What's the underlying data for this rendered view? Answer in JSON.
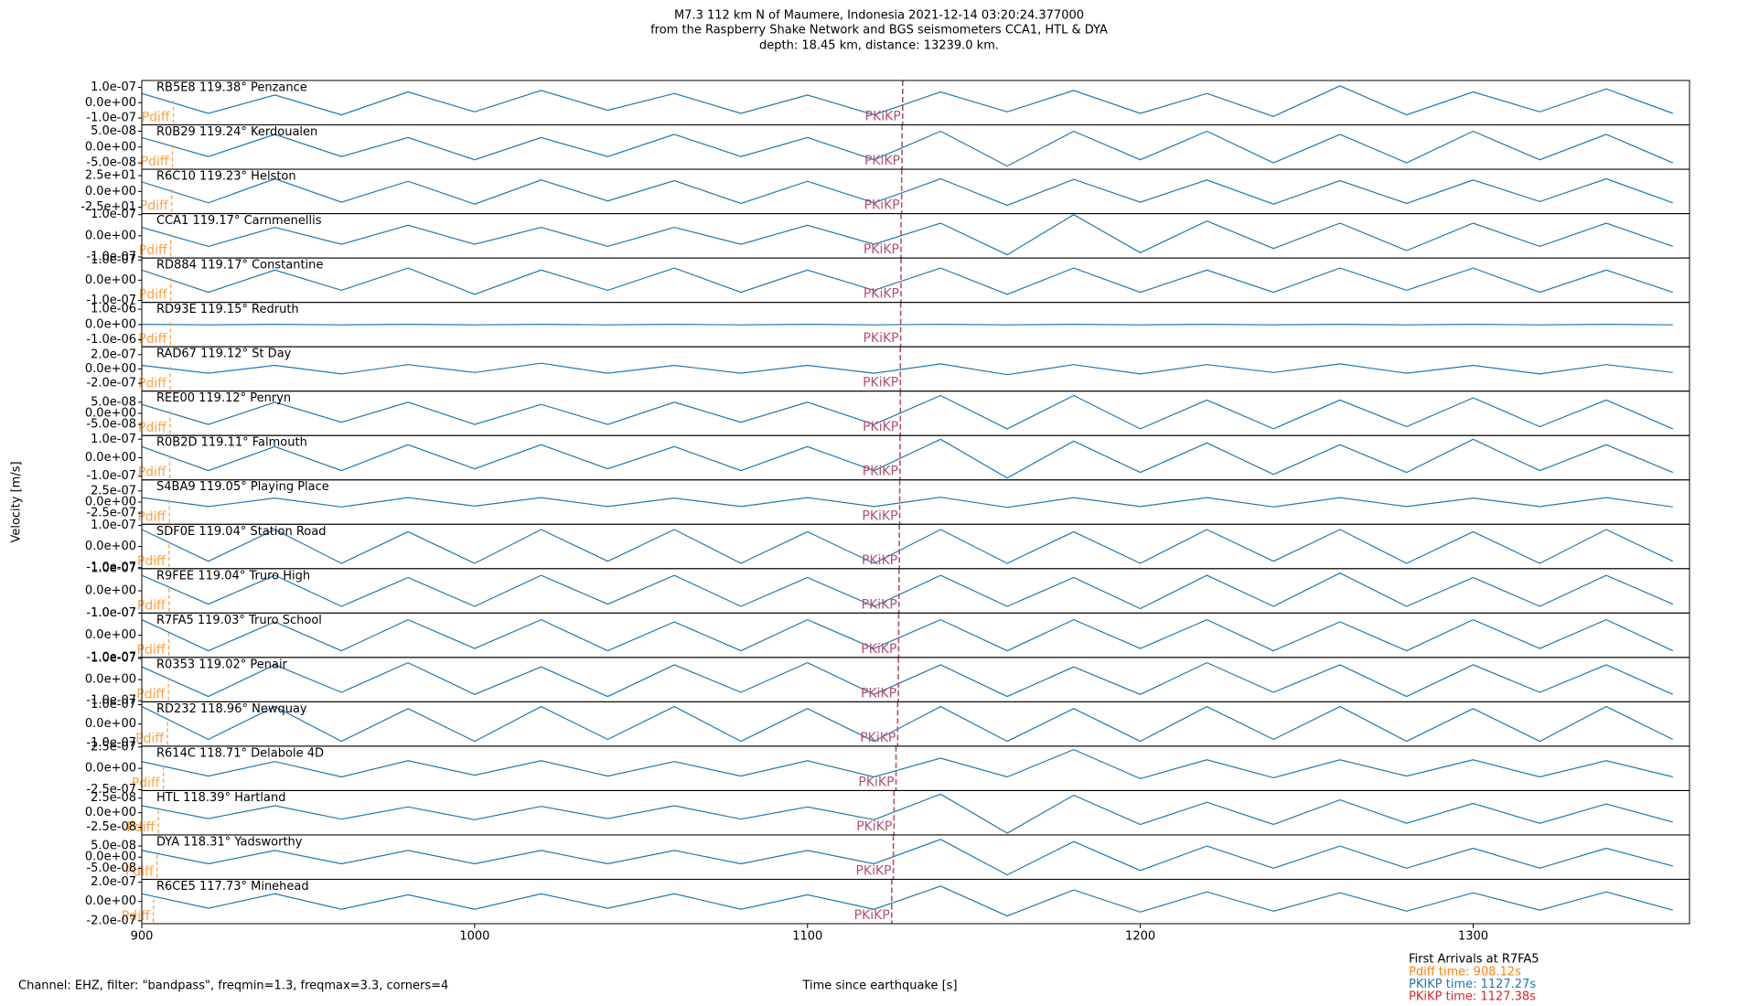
{
  "chart_data": {
    "type": "line",
    "title": [
      "M7.3 112 km N of Maumere, Indonesia 2021-12-14 03:20:24.377000",
      "from the Raspberry Shake Network and BGS seismometers CCA1, HTL & DYA",
      "depth: 18.45 km, distance: 13239.0 km."
    ],
    "ylabel": "Velocity [m/s]",
    "xlabel": "Time since earthquake [s]",
    "note": "Channel: EHZ, filter: \"bandpass\", freqmin=1.3, freqmax=3.3, corners=4",
    "arrivals_title": "First Arrivals at R7FA5",
    "arrivals": [
      {
        "text": "Pdiff time: 908.12s",
        "color": "#ff7f0e"
      },
      {
        "text": "PKIKP time: 1127.27s",
        "color": "#1f77b4"
      },
      {
        "text": "PKiKP time: 1127.38s",
        "color": "#d62728"
      }
    ],
    "pdiff_label": "Pdiff",
    "pdiff_color": "#ffa040",
    "pkikp_label": "PKiKP",
    "pkikp_color": "#b4506e",
    "wave_color": "#1f77b4",
    "xlim": [
      900,
      1365
    ],
    "xticks": [
      900,
      1000,
      1100,
      1200,
      1300
    ],
    "x": [
      900,
      920,
      940,
      960,
      980,
      1000,
      1020,
      1040,
      1060,
      1080,
      1100,
      1120,
      1140,
      1160,
      1180,
      1200,
      1220,
      1240,
      1260,
      1280,
      1300,
      1320,
      1340,
      1360
    ],
    "panels": [
      {
        "label": "RB5E8 119.38° Penzance",
        "ylim": [
          -1.45e-07,
          1.45e-07
        ],
        "yticks": [
          {
            "value": 1e-07,
            "label": "1.0e-07"
          },
          {
            "value": 0,
            "label": "0.0e+00"
          },
          {
            "value": -1e-07,
            "label": "-1.0e-07"
          }
        ],
        "pdiff": 909.5,
        "pkikp": 1128.6,
        "values": [
          6e-08,
          -7e-08,
          5e-08,
          -8e-08,
          7e-08,
          -6e-08,
          8e-08,
          -5e-08,
          6e-08,
          -7e-08,
          5e-08,
          -8e-08,
          7e-08,
          -6e-08,
          8e-08,
          -7e-08,
          6e-08,
          -9e-08,
          1.1e-07,
          -8e-08,
          7e-08,
          -6e-08,
          9e-08,
          -7e-08
        ]
      },
      {
        "label": "R0B29 119.24° Kerdoualen",
        "ylim": [
          -7e-08,
          7e-08
        ],
        "yticks": [
          {
            "value": 5e-08,
            "label": "5.0e-08"
          },
          {
            "value": 0,
            "label": "0.0e+00"
          },
          {
            "value": -5e-08,
            "label": "-5.0e-08"
          }
        ],
        "pdiff": 909.2,
        "pkikp": 1128.4,
        "values": [
          3e-08,
          -3e-08,
          4e-08,
          -3e-08,
          3e-08,
          -4e-08,
          3e-08,
          -3e-08,
          4e-08,
          -3e-08,
          3e-08,
          -4e-08,
          5e-08,
          -6e-08,
          5e-08,
          -4e-08,
          5e-08,
          -5e-08,
          4e-08,
          -5e-08,
          5e-08,
          -4e-08,
          4e-08,
          -5e-08
        ]
      },
      {
        "label": "R6C10 119.23° Helston",
        "ylim": [
          -35,
          35
        ],
        "yticks": [
          {
            "value": 25,
            "label": "2.5e+01"
          },
          {
            "value": 0,
            "label": "0.0e+00"
          },
          {
            "value": -25,
            "label": "-2.5e+01"
          }
        ],
        "pdiff": 909.0,
        "pkikp": 1128.3,
        "values": [
          15,
          -18,
          20,
          -17,
          16,
          -20,
          18,
          -15,
          17,
          -19,
          16,
          -18,
          20,
          -22,
          19,
          -17,
          18,
          -20,
          17,
          -19,
          18,
          -16,
          20,
          -18
        ]
      },
      {
        "label": "CCA1 119.17° Carnmenellis",
        "ylim": [
          -1.05e-07,
          1.05e-07
        ],
        "yticks": [
          {
            "value": 1e-07,
            "label": "1.0e-07"
          },
          {
            "value": 0,
            "label": "0.0e+00"
          },
          {
            "value": -1e-07,
            "label": "-1.0e-07"
          }
        ],
        "pdiff": 908.7,
        "pkikp": 1128.1,
        "values": [
          4e-08,
          -5e-08,
          4e-08,
          -4e-08,
          5e-08,
          -4e-08,
          4e-08,
          -5e-08,
          4e-08,
          -4e-08,
          5e-08,
          -4e-08,
          6e-08,
          -9e-08,
          1e-07,
          -8e-08,
          7e-08,
          -6e-08,
          6e-08,
          -7e-08,
          6e-08,
          -5e-08,
          6e-08,
          -5e-08
        ]
      },
      {
        "label": "RD884 119.17° Constantine",
        "ylim": [
          -1.1e-07,
          1.1e-07
        ],
        "yticks": [
          {
            "value": 1e-07,
            "label": "1.0e-07"
          },
          {
            "value": 0,
            "label": "0.0e+00"
          },
          {
            "value": -1e-07,
            "label": "-1.0e-07"
          }
        ],
        "pdiff": 908.7,
        "pkikp": 1128.1,
        "values": [
          5e-08,
          -6e-08,
          5e-08,
          -5e-08,
          6e-08,
          -7e-08,
          5e-08,
          -5e-08,
          6e-08,
          -6e-08,
          5e-08,
          -5e-08,
          6e-08,
          -7e-08,
          6e-08,
          -6e-08,
          5e-08,
          -6e-08,
          6e-08,
          -5e-08,
          6e-08,
          -6e-08,
          5e-08,
          -6e-08
        ]
      },
      {
        "label": "RD93E 119.15° Redruth",
        "ylim": [
          -1.45e-06,
          1.45e-06
        ],
        "yticks": [
          {
            "value": 1e-06,
            "label": "1.0e-06"
          },
          {
            "value": 0,
            "label": "0.0e+00"
          },
          {
            "value": -1e-06,
            "label": "-1.0e-06"
          }
        ],
        "pdiff": 908.6,
        "pkikp": 1128.0,
        "values": [
          2e-08,
          -2e-08,
          2e-08,
          -2e-08,
          2e-08,
          -2e-08,
          2e-08,
          -2e-08,
          2e-08,
          -2e-08,
          2e-08,
          -2e-08,
          2e-08,
          -2e-08,
          2e-08,
          -2e-08,
          2e-08,
          -2e-08,
          2e-08,
          -2e-08,
          2e-08,
          -2e-08,
          2e-08,
          -2e-08
        ]
      },
      {
        "label": "RAD67 119.12° St Day",
        "ylim": [
          -3.1e-07,
          3.1e-07
        ],
        "yticks": [
          {
            "value": 2e-07,
            "label": "2.0e-07"
          },
          {
            "value": 0,
            "label": "0.0e+00"
          },
          {
            "value": -2e-07,
            "label": "-2.0e-07"
          }
        ],
        "pdiff": 908.5,
        "pkikp": 1127.9,
        "values": [
          5e-08,
          -6e-08,
          5e-08,
          -7e-08,
          6e-08,
          -5e-08,
          8e-08,
          -6e-08,
          5e-08,
          -6e-08,
          5e-08,
          -6e-08,
          7e-08,
          -8e-08,
          6e-08,
          -7e-08,
          6e-08,
          -5e-08,
          7e-08,
          -6e-08,
          5e-08,
          -7e-08,
          6e-08,
          -5e-08
        ]
      },
      {
        "label": "REE00 119.12° Penryn",
        "ylim": [
          -1e-07,
          1e-07
        ],
        "yticks": [
          {
            "value": 5e-08,
            "label": "5.0e-08"
          },
          {
            "value": 0,
            "label": "0.0e+00"
          },
          {
            "value": -5e-08,
            "label": "-5.0e-08"
          }
        ],
        "pdiff": 908.5,
        "pkikp": 1127.9,
        "values": [
          4e-08,
          -5e-08,
          5e-08,
          -4e-08,
          5e-08,
          -5e-08,
          4e-08,
          -5e-08,
          5e-08,
          -4e-08,
          5e-08,
          -5e-08,
          8e-08,
          -7e-08,
          8e-08,
          -7e-08,
          6e-08,
          -7e-08,
          6e-08,
          -6e-08,
          7e-08,
          -6e-08,
          6e-08,
          -7e-08
        ]
      },
      {
        "label": "R0B2D 119.11° Falmouth",
        "ylim": [
          -1.2e-07,
          1.2e-07
        ],
        "yticks": [
          {
            "value": 1e-07,
            "label": "1.0e-07"
          },
          {
            "value": 0,
            "label": "0.0e+00"
          },
          {
            "value": -1e-07,
            "label": "-1.0e-07"
          }
        ],
        "pdiff": 908.4,
        "pkikp": 1127.8,
        "values": [
          6e-08,
          -7e-08,
          6e-08,
          -7e-08,
          7e-08,
          -6e-08,
          7e-08,
          -6e-08,
          6e-08,
          -7e-08,
          6e-08,
          -7e-08,
          1e-07,
          -1.1e-07,
          9e-08,
          -8e-08,
          8e-08,
          -9e-08,
          7e-08,
          -8e-08,
          1e-07,
          -7e-08,
          7e-08,
          -8e-08
        ]
      },
      {
        "label": "S4BA9 119.05° Playing Place",
        "ylim": [
          -5e-07,
          5e-07
        ],
        "yticks": [
          {
            "value": 2.5e-07,
            "label": "2.5e-07"
          },
          {
            "value": 0,
            "label": "0.0e+00"
          },
          {
            "value": -2.5e-07,
            "label": "-2.5e-07"
          }
        ],
        "pdiff": 908.3,
        "pkikp": 1127.7,
        "values": [
          1e-07,
          -1e-07,
          9e-08,
          -1.1e-07,
          1e-07,
          -9e-08,
          1e-07,
          -1e-07,
          9e-08,
          -1e-07,
          1e-07,
          -1e-07,
          1.1e-07,
          -1.2e-07,
          1e-07,
          -1e-07,
          1e-07,
          -1.1e-07,
          1e-07,
          -1e-07,
          9e-08,
          -1e-07,
          1e-07,
          -1.1e-07
        ]
      },
      {
        "label": "SDF0E 119.04° Station Road",
        "ylim": [
          -1.05e-07,
          1.05e-07
        ],
        "yticks": [
          {
            "value": 1e-07,
            "label": "1.0e-07"
          },
          {
            "value": 0,
            "label": "0.0e+00"
          },
          {
            "value": -1e-07,
            "label": "-1.0e-07"
          }
        ],
        "pdiff": 908.2,
        "pkikp": 1127.6,
        "values": [
          8e-08,
          -7e-08,
          8e-08,
          -8e-08,
          7e-08,
          -8e-08,
          8e-08,
          -7e-08,
          8e-08,
          -8e-08,
          7e-08,
          -8e-08,
          8e-08,
          -8e-08,
          7e-08,
          -8e-08,
          8e-08,
          -7e-08,
          8e-08,
          -8e-08,
          7e-08,
          -8e-08,
          8e-08,
          -7e-08
        ]
      },
      {
        "label": "R9FEE 119.04° Truro High",
        "ylim": [
          -1e-07,
          1e-07
        ],
        "yticks": [
          {
            "value": 1e-07,
            "label": "1.0e-07"
          },
          {
            "value": 0,
            "label": "0.0e+00"
          },
          {
            "value": -1e-07,
            "label": "-1.0e-07"
          }
        ],
        "pdiff": 908.2,
        "pkikp": 1127.5,
        "values": [
          7e-08,
          -6e-08,
          7e-08,
          -7e-08,
          6e-08,
          -7e-08,
          7e-08,
          -6e-08,
          7e-08,
          -7e-08,
          6e-08,
          -7e-08,
          7e-08,
          -7e-08,
          6e-08,
          -8e-08,
          7e-08,
          -7e-08,
          8e-08,
          -7e-08,
          6e-08,
          -7e-08,
          7e-08,
          -6e-08
        ]
      },
      {
        "label": "R7FA5 119.03° Truro School",
        "ylim": [
          -1e-07,
          1e-07
        ],
        "yticks": [
          {
            "value": 1e-07,
            "label": "1.0e-07"
          },
          {
            "value": 0,
            "label": "0.0e+00"
          },
          {
            "value": -1e-07,
            "label": "-1.0e-07"
          }
        ],
        "pdiff": 908.1,
        "pkikp": 1127.4,
        "values": [
          7e-08,
          -7e-08,
          6e-08,
          -7e-08,
          7e-08,
          -6e-08,
          7e-08,
          -7e-08,
          6e-08,
          -7e-08,
          7e-08,
          -6e-08,
          7e-08,
          -7e-08,
          7e-08,
          -6e-08,
          7e-08,
          -7e-08,
          6e-08,
          -7e-08,
          7e-08,
          -6e-08,
          7e-08,
          -7e-08
        ]
      },
      {
        "label": "R0353 119.02° Penair",
        "ylim": [
          -1.05e-07,
          1.05e-07
        ],
        "yticks": [
          {
            "value": 1e-07,
            "label": "1.0e-07"
          },
          {
            "value": 0,
            "label": "0.0e+00"
          },
          {
            "value": -1e-07,
            "label": "-1.0e-07"
          }
        ],
        "pdiff": 908.0,
        "pkikp": 1127.3,
        "values": [
          6e-08,
          -8e-08,
          7e-08,
          -6e-08,
          8e-08,
          -7e-08,
          6e-08,
          -8e-08,
          7e-08,
          -6e-08,
          8e-08,
          -7e-08,
          7e-08,
          -8e-08,
          6e-08,
          -7e-08,
          8e-08,
          -6e-08,
          7e-08,
          -8e-08,
          7e-08,
          -6e-08,
          7e-08,
          -7e-08
        ]
      },
      {
        "label": "RD232 118.96° Newquay",
        "ylim": [
          -1.15e-07,
          1.15e-07
        ],
        "yticks": [
          {
            "value": 1e-07,
            "label": "1.0e-07"
          },
          {
            "value": 0,
            "label": "0.0e+00"
          },
          {
            "value": -1e-07,
            "label": "-1.0e-07"
          }
        ],
        "pdiff": 907.7,
        "pkikp": 1127.1,
        "values": [
          9e-08,
          -8e-08,
          9e-08,
          -9e-08,
          8e-08,
          -9e-08,
          9e-08,
          -8e-08,
          9e-08,
          -9e-08,
          8e-08,
          -9e-08,
          9e-08,
          -9e-08,
          8e-08,
          -9e-08,
          9e-08,
          -8e-08,
          9e-08,
          -9e-08,
          8e-08,
          -9e-08,
          9e-08,
          -8e-08
        ]
      },
      {
        "label": "R614C 118.71° Delabole 4D",
        "ylim": [
          -2.6e-07,
          2.6e-07
        ],
        "yticks": [
          {
            "value": 2.5e-07,
            "label": "2.5e-07"
          },
          {
            "value": 0,
            "label": "0.0e+00"
          },
          {
            "value": -2.5e-07,
            "label": "-2.5e-07"
          }
        ],
        "pdiff": 906.5,
        "pkikp": 1126.6,
        "values": [
          8e-08,
          -9e-08,
          8e-08,
          -1e-07,
          9e-08,
          -8e-08,
          9e-08,
          -9e-08,
          8e-08,
          -9e-08,
          9e-08,
          -1e-07,
          1.2e-07,
          -1e-07,
          2.2e-07,
          -1.2e-07,
          1e-07,
          -1.1e-07,
          1e-07,
          -9e-08,
          1e-07,
          -1e-07,
          9e-08,
          -1e-07
        ]
      },
      {
        "label": "HTL 118.39° Hartland",
        "ylim": [
          -3.8e-08,
          3.8e-08
        ],
        "yticks": [
          {
            "value": 2.5e-08,
            "label": "2.5e-08"
          },
          {
            "value": 0,
            "label": "0.0e+00"
          },
          {
            "value": -2.5e-08,
            "label": "-2.5e-08"
          }
        ],
        "pdiff": 905.0,
        "pkikp": 1126.0,
        "values": [
          1.2e-08,
          -1e-08,
          1.2e-08,
          -1.1e-08,
          1e-08,
          -1.2e-08,
          1.1e-08,
          -1e-08,
          1.2e-08,
          -1.1e-08,
          1e-08,
          -1.2e-08,
          3.2e-08,
          -3.5e-08,
          3e-08,
          -2e-08,
          1.8e-08,
          -2e-08,
          2.2e-08,
          -1.8e-08,
          1.6e-08,
          -1.8e-08,
          1.5e-08,
          -1.6e-08
        ]
      },
      {
        "label": "DYA 118.31° Yadsworthy",
        "ylim": [
          -1e-07,
          1e-07
        ],
        "yticks": [
          {
            "value": 5e-08,
            "label": "5.0e-08"
          },
          {
            "value": 0,
            "label": "0.0e+00"
          },
          {
            "value": -5e-08,
            "label": "-5.0e-08"
          }
        ],
        "pdiff": 904.6,
        "pkikp": 1125.8,
        "values": [
          3e-08,
          -3e-08,
          3e-08,
          -3e-08,
          3e-08,
          -3e-08,
          3e-08,
          -3e-08,
          3e-08,
          -3e-08,
          3e-08,
          -3e-08,
          8e-08,
          -8e-08,
          7e-08,
          -6e-08,
          5e-08,
          -5e-08,
          5e-08,
          -5e-08,
          4e-08,
          -5e-08,
          4e-08,
          -4e-08
        ]
      },
      {
        "label": "R6CE5 117.73° Minehead",
        "ylim": [
          -2.3e-07,
          2.3e-07
        ],
        "yticks": [
          {
            "value": 2e-07,
            "label": "2.0e-07"
          },
          {
            "value": 0,
            "label": "0.0e+00"
          },
          {
            "value": -2e-07,
            "label": "-2.0e-07"
          }
        ],
        "pdiff": 903.5,
        "pkikp": 1125.3,
        "values": [
          8e-08,
          -7e-08,
          8e-08,
          -8e-08,
          7e-08,
          -8e-08,
          8e-08,
          -7e-08,
          8e-08,
          -8e-08,
          7e-08,
          -8e-08,
          1.6e-07,
          -1.5e-07,
          1.2e-07,
          -1.1e-07,
          1e-07,
          -1e-07,
          9e-08,
          -1e-07,
          9e-08,
          -9e-08,
          1e-07,
          -9e-08
        ]
      }
    ]
  }
}
